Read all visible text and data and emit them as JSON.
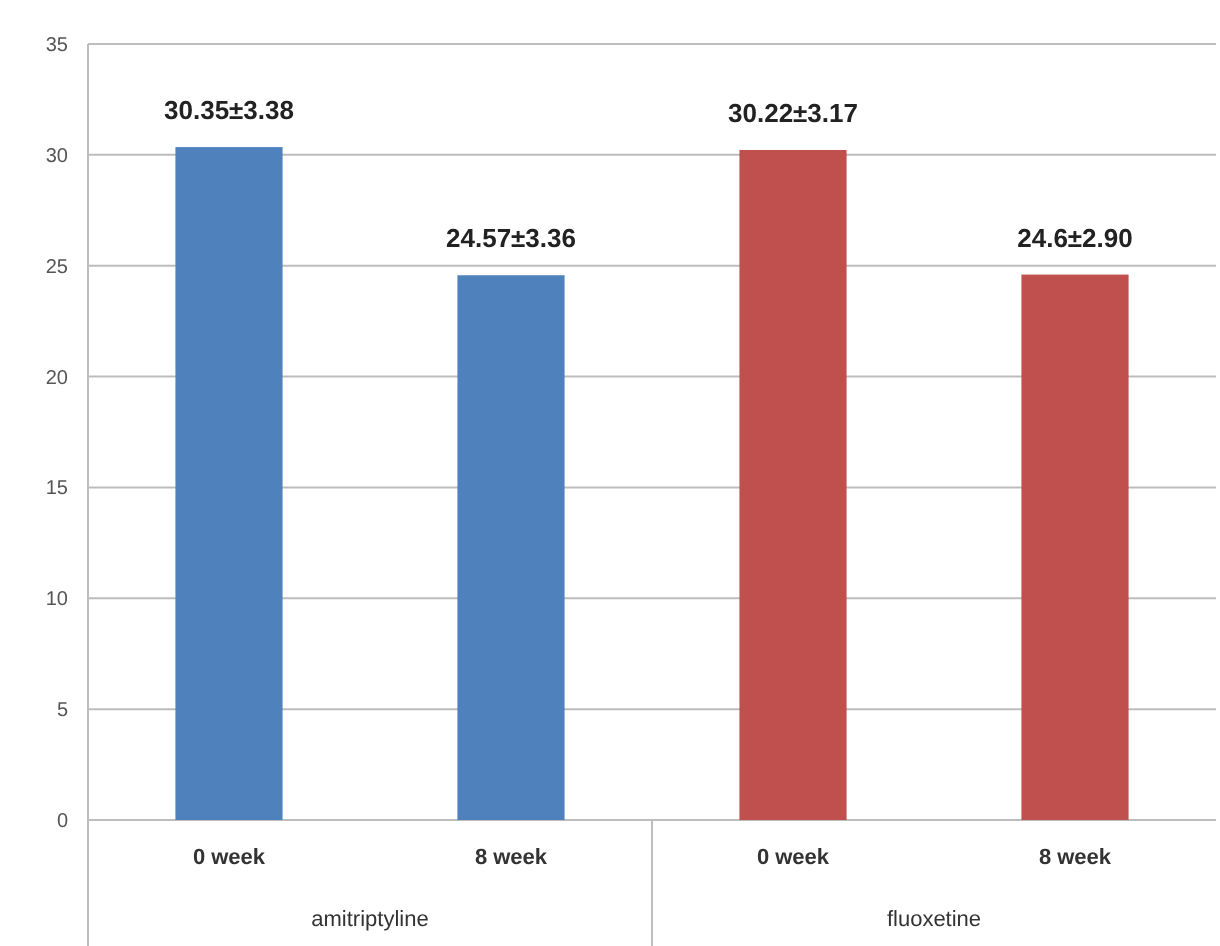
{
  "chart_data": {
    "type": "bar",
    "categories": [
      "0 week",
      "8 week",
      "0 week",
      "8 week"
    ],
    "values": [
      30.35,
      24.57,
      30.22,
      24.6
    ],
    "colors": [
      "#4f81bd",
      "#4f81bd",
      "#c0504d",
      "#c0504d"
    ],
    "value_labels": [
      "30.35±3.38",
      "24.57±3.36",
      "30.22±3.17",
      "24.6±2.90"
    ],
    "annotations": [
      "amitriptyline",
      "fluoxetine"
    ],
    "ylim": [
      0,
      35
    ],
    "yticks": [
      0,
      5,
      10,
      15,
      20,
      25,
      30,
      35
    ],
    "grid": "y"
  }
}
